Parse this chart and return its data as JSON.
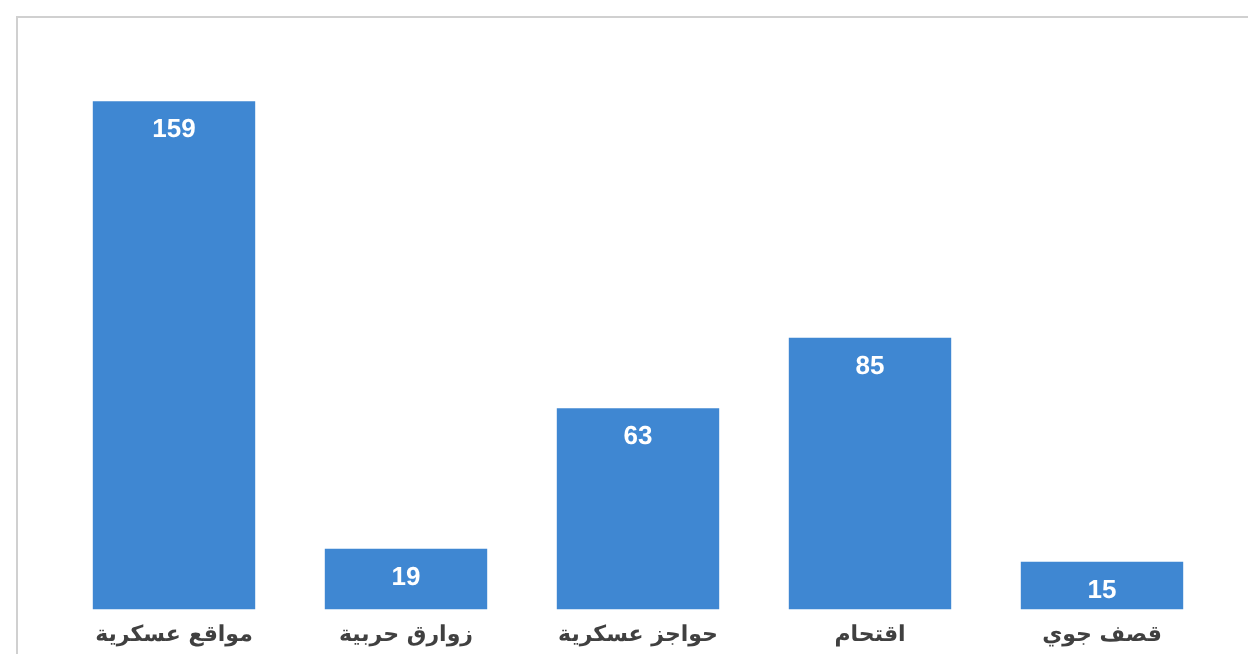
{
  "chart_data": {
    "type": "bar",
    "categories": [
      "مواقع عسكرية",
      "زوارق حربية",
      "حواجز عسكرية",
      "اقتحام",
      "قصف جوي"
    ],
    "values": [
      159,
      19,
      63,
      85,
      15
    ],
    "color": "#3f87d2",
    "data_labels": true,
    "grid": false,
    "legend": false
  }
}
